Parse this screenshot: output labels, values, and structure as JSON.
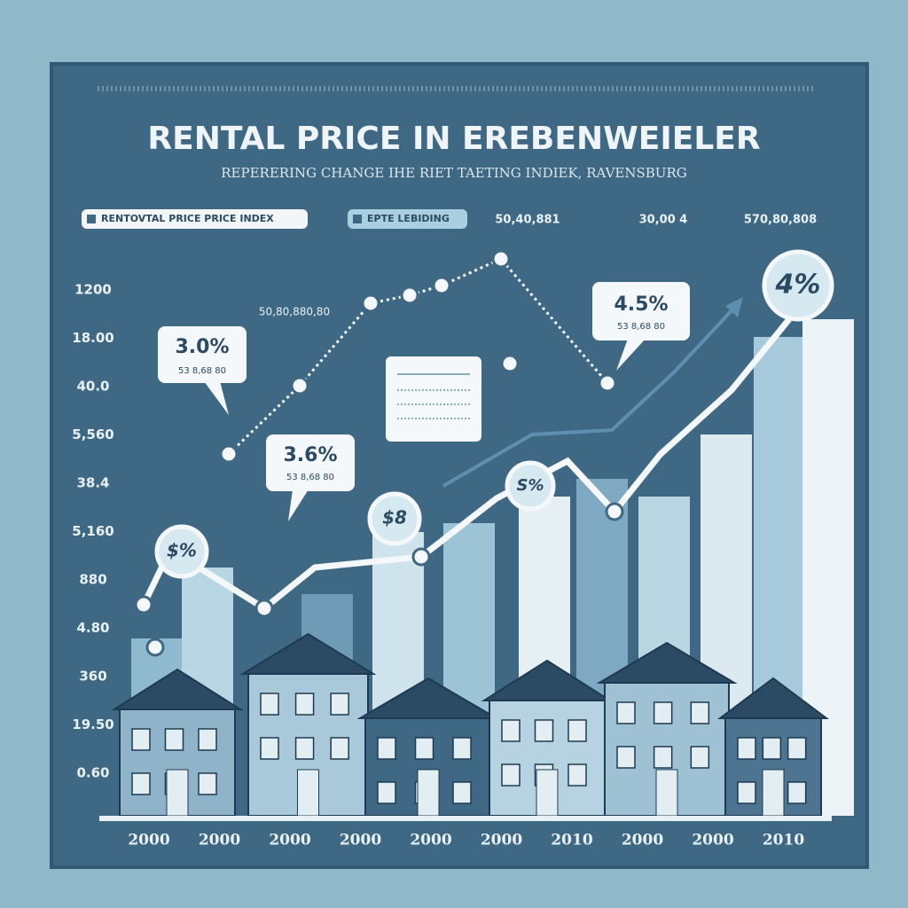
{
  "header": {
    "title": "RENTAL PRICE IN EREBENWEIELER",
    "subtitle": "REPERERING CHANGE IHE RIET TAETING INDIEK, RAVENSBURG"
  },
  "legend": [
    "RENTOVTAL PRICE PRICE INDEX",
    "EPTE LEBIDING"
  ],
  "top_labels": [
    "50,40,881",
    "30,00 4",
    "570,80,808"
  ],
  "y_labels": [
    "1200",
    "18.00",
    "40.0",
    "5,560",
    "38.4",
    "5,160",
    "880",
    "4.80",
    "360",
    "19.50",
    "0.60"
  ],
  "x_labels": [
    "2000",
    "2000",
    "2000",
    "2000",
    "2000",
    "2000",
    "2010",
    "2000",
    "2000",
    "2010"
  ],
  "callouts": [
    {
      "label": "3.0%",
      "note": "53 8,68 80"
    },
    {
      "label": "3.6%",
      "note": "53 8,68 80"
    },
    {
      "label": "4.5%",
      "note": "53 8,68 80"
    }
  ],
  "badges": [
    "$%",
    "$8",
    "S%",
    "4%"
  ],
  "small_label": "50,80,880,80"
}
